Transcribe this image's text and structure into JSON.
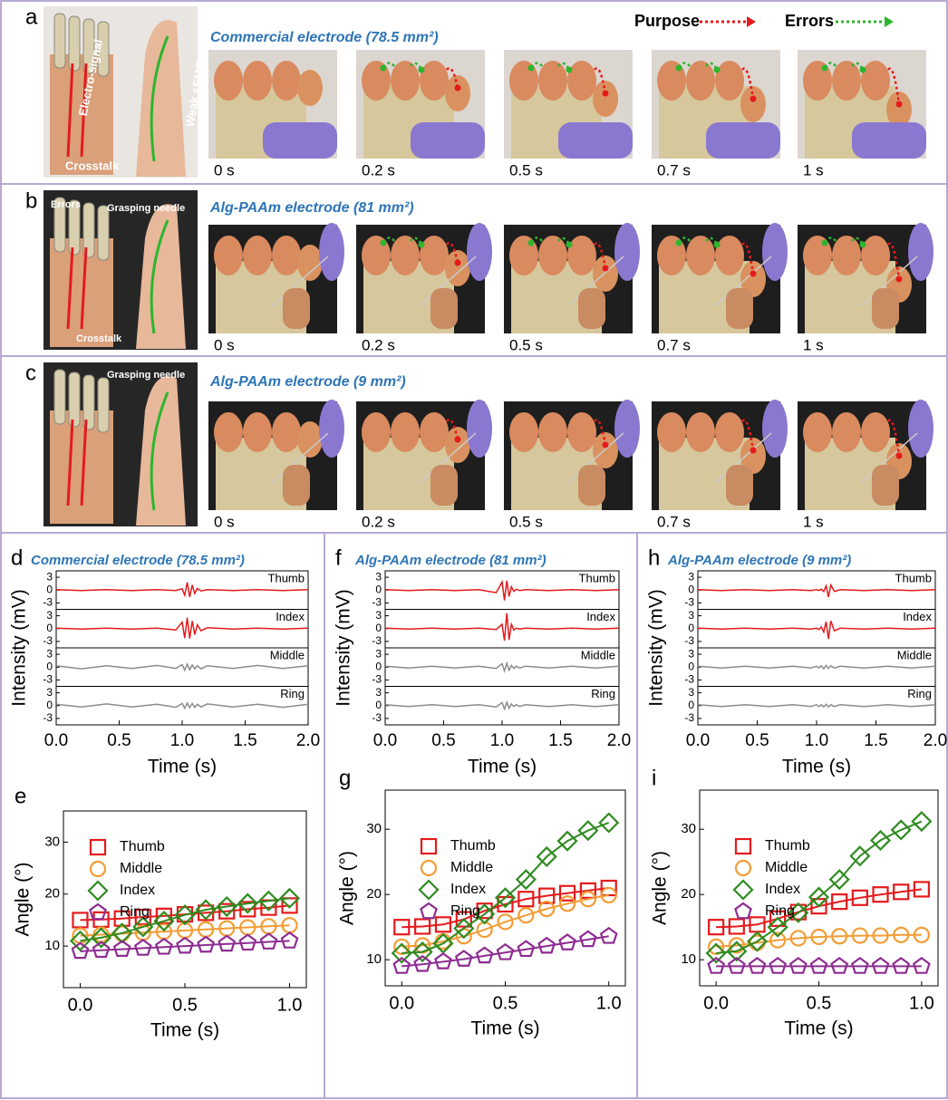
{
  "annotation_legend": {
    "purpose": "Purpose",
    "errors": "Errors"
  },
  "panels": [
    {
      "letter": "a",
      "title": "Commercial electrode (78.5 mm²)",
      "photo_labels": [
        "Electro-signal",
        "Crosstalk",
        "Weak sEMG"
      ],
      "frame_times": [
        "0 s",
        "0.2 s",
        "0.5 s",
        "0.7 s",
        "1 s"
      ]
    },
    {
      "letter": "b",
      "title": "Alg-PAAm electrode (81 mm²)",
      "photo_labels": [
        "Errors",
        "Grasping needle",
        "Crosstalk"
      ],
      "frame_times": [
        "0 s",
        "0.2 s",
        "0.5 s",
        "0.7 s",
        "1 s"
      ]
    },
    {
      "letter": "c",
      "title": "Alg-PAAm electrode (9 mm²)",
      "photo_labels": [
        "Grasping needle"
      ],
      "frame_times": [
        "0 s",
        "0.2 s",
        "0.5 s",
        "0.7 s",
        "1 s"
      ]
    }
  ],
  "chart_data": [
    {
      "type": "signal",
      "panel": "d",
      "title": "Commercial electrode (78.5 mm²)",
      "x_label": "Time (s)",
      "y_label": "Intensity (mV)",
      "x": [
        0,
        0.2,
        0.4,
        0.6,
        0.8,
        0.95,
        1.0,
        1.02,
        1.04,
        1.06,
        1.08,
        1.1,
        1.12,
        1.15,
        1.2,
        1.4,
        1.6,
        1.8,
        2.0
      ],
      "xlim": [
        0,
        2
      ],
      "xticks": [
        {
          "value": 0,
          "label": "0.0"
        },
        {
          "value": 0.5,
          "label": "0.5"
        },
        {
          "value": 1,
          "label": "1.0"
        },
        {
          "value": 1.5,
          "label": "1.5"
        },
        {
          "value": 2,
          "label": "2.0"
        }
      ],
      "ylim": [
        -4.5,
        4.5
      ],
      "yticks": [
        3,
        0,
        -3
      ],
      "series": [
        {
          "name": "Thumb",
          "color": "#e41a1c",
          "values": [
            0.1,
            -0.1,
            0.1,
            -0.1,
            0.1,
            -0.1,
            0.3,
            -1.2,
            1.8,
            -1.6,
            1.2,
            -0.8,
            0.4,
            -0.2,
            0.1,
            -0.1,
            0.1,
            -0.1,
            0.1
          ]
        },
        {
          "name": "Index",
          "color": "#e41a1c",
          "values": [
            0.1,
            -0.1,
            0.1,
            -0.1,
            0.1,
            -0.3,
            1.5,
            -2.2,
            2.5,
            -2.3,
            1.8,
            -1.4,
            0.9,
            -0.5,
            0.2,
            -0.1,
            0.1,
            -0.1,
            0.1
          ]
        },
        {
          "name": "Middle",
          "color": "#8c8c8c",
          "values": [
            0.3,
            -0.4,
            0.3,
            -0.3,
            0.4,
            -0.3,
            0.6,
            -0.7,
            0.7,
            -0.6,
            0.5,
            -0.4,
            0.3,
            -0.4,
            0.3,
            -0.3,
            0.4,
            -0.3,
            0.3
          ]
        },
        {
          "name": "Ring",
          "color": "#8c8c8c",
          "values": [
            0.3,
            -0.3,
            0.4,
            -0.3,
            0.3,
            -0.4,
            0.5,
            -0.6,
            0.6,
            -0.5,
            0.5,
            -0.4,
            0.3,
            -0.3,
            0.4,
            -0.3,
            0.3,
            -0.4,
            0.3
          ]
        }
      ]
    },
    {
      "type": "angle",
      "panel": "e",
      "x_label": "Time (s)",
      "y_label": "Angle (°)",
      "x": [
        0,
        0.1,
        0.2,
        0.3,
        0.4,
        0.5,
        0.6,
        0.7,
        0.8,
        0.9,
        1.0
      ],
      "xlim": [
        -0.08,
        1.08
      ],
      "xticks": [
        {
          "value": 0,
          "label": "0.0"
        },
        {
          "value": 0.5,
          "label": "0.5"
        },
        {
          "value": 1,
          "label": "1.0"
        }
      ],
      "ylim": [
        2,
        36
      ],
      "yticks": [
        10,
        20,
        30
      ],
      "series": [
        {
          "name": "Thumb",
          "color": "#e41a1c",
          "marker": "square",
          "values": [
            15,
            15.1,
            15.3,
            15.6,
            15.8,
            16.1,
            16.4,
            16.7,
            17.1,
            17.4,
            17.8
          ]
        },
        {
          "name": "Middle",
          "color": "#f39c34",
          "marker": "circle",
          "values": [
            12,
            12.2,
            12.4,
            12.6,
            12.8,
            13,
            13.2,
            13.4,
            13.6,
            13.8,
            14
          ]
        },
        {
          "name": "Index",
          "color": "#2e8b1f",
          "marker": "diamond",
          "values": [
            11,
            11.6,
            12.5,
            13.7,
            14.8,
            16,
            17,
            17.6,
            18.2,
            18.7,
            19.2
          ]
        },
        {
          "name": "Ring",
          "color": "#8e2c91",
          "marker": "pentagon",
          "values": [
            9,
            9.2,
            9.4,
            9.6,
            9.8,
            10,
            10.2,
            10.4,
            10.6,
            10.8,
            11
          ]
        }
      ]
    },
    {
      "type": "signal",
      "panel": "f",
      "title": "Alg-PAAm electrode (81 mm²)",
      "x_label": "Time (s)",
      "y_label": "Intensity (mV)",
      "x": [
        0,
        0.2,
        0.4,
        0.6,
        0.8,
        0.95,
        1.0,
        1.02,
        1.04,
        1.06,
        1.08,
        1.1,
        1.12,
        1.15,
        1.2,
        1.4,
        1.6,
        1.8,
        2.0
      ],
      "xlim": [
        0,
        2
      ],
      "xticks": [
        {
          "value": 0,
          "label": "0.0"
        },
        {
          "value": 0.5,
          "label": "0.5"
        },
        {
          "value": 1,
          "label": "1.0"
        },
        {
          "value": 1.5,
          "label": "1.5"
        },
        {
          "value": 2,
          "label": "2.0"
        }
      ],
      "ylim": [
        -4.5,
        4.5
      ],
      "yticks": [
        3,
        0,
        -3
      ],
      "series": [
        {
          "name": "Thumb",
          "color": "#e41a1c",
          "values": [
            0.1,
            -0.1,
            0.1,
            -0.1,
            0.1,
            -0.6,
            1.9,
            -2.4,
            2.2,
            -1.5,
            0.8,
            -0.3,
            0.2,
            -0.1,
            0.1,
            -0.1,
            0.1,
            -0.1,
            0.1
          ]
        },
        {
          "name": "Index",
          "color": "#e41a1c",
          "values": [
            0.1,
            -0.1,
            0.1,
            -0.1,
            0.1,
            -0.2,
            1.0,
            -2.8,
            3.6,
            -2.6,
            1.0,
            -0.3,
            0.1,
            -0.1,
            0.1,
            -0.1,
            0.1,
            -0.1,
            0.1
          ]
        },
        {
          "name": "Middle",
          "color": "#8c8c8c",
          "values": [
            0.2,
            -0.2,
            0.2,
            -0.2,
            0.2,
            -0.3,
            0.8,
            -0.9,
            0.9,
            -0.7,
            0.4,
            -0.3,
            0.2,
            -0.2,
            0.2,
            -0.2,
            0.2,
            -0.2,
            0.2
          ]
        },
        {
          "name": "Ring",
          "color": "#8c8c8c",
          "values": [
            0.2,
            -0.2,
            0.2,
            -0.2,
            0.2,
            -0.3,
            0.7,
            -0.8,
            0.8,
            -0.6,
            0.4,
            -0.2,
            0.2,
            -0.2,
            0.2,
            -0.2,
            0.2,
            -0.2,
            0.2
          ]
        }
      ]
    },
    {
      "type": "angle",
      "panel": "g",
      "x_label": "Time (s)",
      "y_label": "Angle (°)",
      "x": [
        0,
        0.1,
        0.2,
        0.3,
        0.4,
        0.5,
        0.6,
        0.7,
        0.8,
        0.9,
        1.0
      ],
      "xlim": [
        -0.08,
        1.08
      ],
      "xticks": [
        {
          "value": 0,
          "label": "0.0"
        },
        {
          "value": 0.5,
          "label": "0.5"
        },
        {
          "value": 1,
          "label": "1.0"
        }
      ],
      "ylim": [
        6,
        36
      ],
      "yticks": [
        10,
        20,
        30
      ],
      "series": [
        {
          "name": "Thumb",
          "color": "#e41a1c",
          "marker": "square",
          "values": [
            15,
            15.1,
            15.4,
            16.2,
            17.5,
            18.5,
            19.3,
            19.8,
            20.2,
            20.6,
            21
          ]
        },
        {
          "name": "Middle",
          "color": "#f39c34",
          "marker": "circle",
          "values": [
            12,
            12.2,
            12.8,
            13.6,
            14.6,
            15.8,
            16.8,
            17.8,
            18.6,
            19.3,
            19.9
          ]
        },
        {
          "name": "Index",
          "color": "#2e8b1f",
          "marker": "diamond",
          "values": [
            11,
            11.2,
            12.5,
            14.8,
            17,
            19.5,
            22.3,
            25.8,
            28.2,
            29.8,
            31
          ]
        },
        {
          "name": "Ring",
          "color": "#8e2c91",
          "marker": "pentagon",
          "values": [
            9,
            9.3,
            9.7,
            10.1,
            10.6,
            11.1,
            11.6,
            12.1,
            12.6,
            13.1,
            13.6
          ]
        }
      ]
    },
    {
      "type": "signal",
      "panel": "h",
      "title": "Alg-PAAm electrode (9 mm²)",
      "x_label": "Time (s)",
      "y_label": "Intensity (mV)",
      "x": [
        0,
        0.2,
        0.4,
        0.6,
        0.8,
        0.95,
        1.0,
        1.02,
        1.04,
        1.06,
        1.08,
        1.1,
        1.12,
        1.15,
        1.2,
        1.4,
        1.6,
        1.8,
        2.0
      ],
      "xlim": [
        0,
        2
      ],
      "xticks": [
        {
          "value": 0,
          "label": "0.0"
        },
        {
          "value": 0.5,
          "label": "0.5"
        },
        {
          "value": 1,
          "label": "1.0"
        },
        {
          "value": 1.5,
          "label": "1.5"
        },
        {
          "value": 2,
          "label": "2.0"
        }
      ],
      "ylim": [
        -4.5,
        4.5
      ],
      "yticks": [
        3,
        0,
        -3
      ],
      "series": [
        {
          "name": "Thumb",
          "color": "#e41a1c",
          "values": [
            0.1,
            -0.1,
            0.1,
            -0.1,
            0.1,
            -0.1,
            0.1,
            -0.1,
            0.2,
            -0.3,
            1.0,
            -1.6,
            1.2,
            -0.3,
            0.1,
            -0.1,
            0.1,
            -0.1,
            0.1
          ]
        },
        {
          "name": "Index",
          "color": "#e41a1c",
          "values": [
            0.1,
            -0.1,
            0.1,
            -0.1,
            0.1,
            -0.1,
            0.1,
            -0.2,
            0.4,
            -0.8,
            1.6,
            -2.4,
            1.8,
            -0.5,
            0.1,
            -0.1,
            0.1,
            -0.1,
            0.1
          ]
        },
        {
          "name": "Middle",
          "color": "#8c8c8c",
          "values": [
            0.2,
            -0.2,
            0.2,
            -0.2,
            0.2,
            -0.2,
            0.2,
            -0.2,
            0.3,
            -0.4,
            0.4,
            -0.3,
            0.3,
            -0.2,
            0.2,
            -0.2,
            0.2,
            -0.2,
            0.2
          ]
        },
        {
          "name": "Ring",
          "color": "#8c8c8c",
          "values": [
            0.2,
            -0.2,
            0.2,
            -0.2,
            0.2,
            -0.2,
            0.2,
            -0.2,
            0.2,
            -0.3,
            0.3,
            -0.3,
            0.2,
            -0.2,
            0.2,
            -0.2,
            0.2,
            -0.2,
            0.2
          ]
        }
      ]
    },
    {
      "type": "angle",
      "panel": "i",
      "x_label": "Time (s)",
      "y_label": "Angle (°)",
      "x": [
        0,
        0.1,
        0.2,
        0.3,
        0.4,
        0.5,
        0.6,
        0.7,
        0.8,
        0.9,
        1.0
      ],
      "xlim": [
        -0.08,
        1.08
      ],
      "xticks": [
        {
          "value": 0,
          "label": "0.0"
        },
        {
          "value": 0.5,
          "label": "0.5"
        },
        {
          "value": 1,
          "label": "1.0"
        }
      ],
      "ylim": [
        6,
        36
      ],
      "yticks": [
        10,
        20,
        30
      ],
      "series": [
        {
          "name": "Thumb",
          "color": "#e41a1c",
          "marker": "square",
          "values": [
            15,
            15.1,
            15.4,
            16.3,
            17.3,
            18.2,
            18.9,
            19.5,
            20,
            20.4,
            20.8
          ]
        },
        {
          "name": "Middle",
          "color": "#f39c34",
          "marker": "circle",
          "values": [
            12,
            12.2,
            12.6,
            13,
            13.3,
            13.5,
            13.6,
            13.7,
            13.7,
            13.8,
            13.8
          ]
        },
        {
          "name": "Index",
          "color": "#2e8b1f",
          "marker": "diamond",
          "values": [
            11,
            11.3,
            12.8,
            15,
            17.2,
            19.6,
            22.3,
            25.9,
            28.3,
            29.9,
            31.2
          ]
        },
        {
          "name": "Ring",
          "color": "#8e2c91",
          "marker": "pentagon",
          "values": [
            9,
            9,
            9,
            9,
            9,
            9,
            9,
            9,
            9,
            9,
            9
          ]
        }
      ]
    }
  ]
}
